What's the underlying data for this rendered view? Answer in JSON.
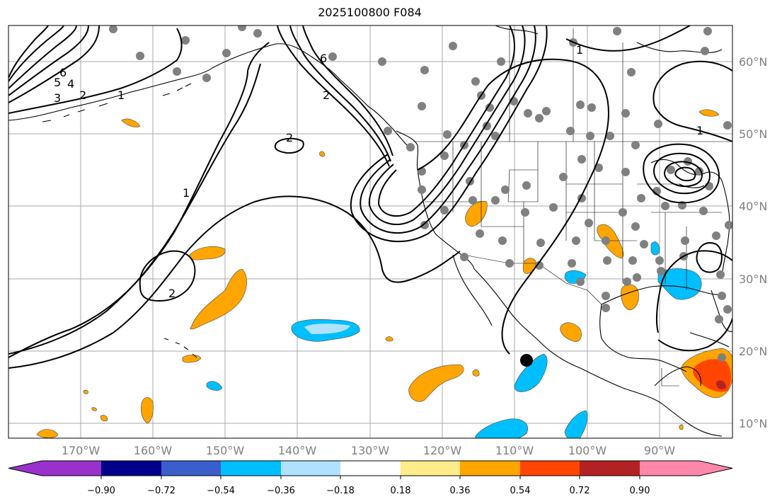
{
  "title": "2025100800 F084",
  "map": {
    "lat_labels": [
      "60°N",
      "50°N",
      "40°N",
      "30°N",
      "20°N",
      "10°N"
    ],
    "lon_labels": [
      "170°W",
      "160°W",
      "150°W",
      "140°W",
      "130°W",
      "120°W",
      "110°W",
      "100°W",
      "90°W"
    ],
    "contour_labels": [
      "6",
      "5",
      "4",
      "3",
      "2",
      "1",
      "2",
      "2",
      "1",
      "2",
      "6",
      "1",
      "1"
    ],
    "marker": "black-dot"
  },
  "colorbar": {
    "labels": [
      "−0.90",
      "−0.72",
      "−0.54",
      "−0.36",
      "−0.18",
      "0.18",
      "0.36",
      "0.54",
      "0.72",
      "0.90"
    ],
    "colors": [
      "#9932cc",
      "#00008b",
      "#3a5fcd",
      "#00bfff",
      "#b0e2ff",
      "#ffffff",
      "#ffec8b",
      "#ffa500",
      "#ff4500",
      "#b22222",
      "#ff88aa"
    ]
  }
}
